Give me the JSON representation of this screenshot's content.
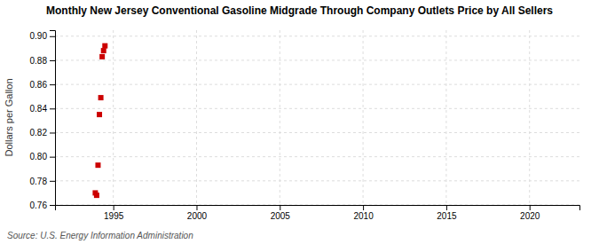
{
  "chart_data": {
    "type": "scatter",
    "title": "Monthly New Jersey Conventional Gasoline Midgrade Through Company Outlets Price by All Sellers",
    "ylabel": "Dollars per Gallon",
    "annotation": "Source: U.S. Energy Information Administration",
    "x": [
      1993.92,
      1994.0,
      1994.083,
      1994.167,
      1994.25,
      1994.333,
      1994.417,
      1994.5
    ],
    "values": [
      0.77,
      0.768,
      0.793,
      0.835,
      0.849,
      0.883,
      0.888,
      0.892
    ],
    "color": "#cc0000",
    "marker": "square",
    "xlim": [
      1991.5,
      2023
    ],
    "ylim": [
      0.76,
      0.905
    ],
    "xticks": [
      1995,
      2000,
      2005,
      2010,
      2015,
      2020
    ],
    "yticks": [
      0.76,
      0.78,
      {
        "value": 0.8,
        "label": "0.80"
      },
      0.82,
      0.84,
      0.86,
      0.88,
      {
        "value": 0.9,
        "label": "0.90"
      }
    ],
    "grid": true
  }
}
